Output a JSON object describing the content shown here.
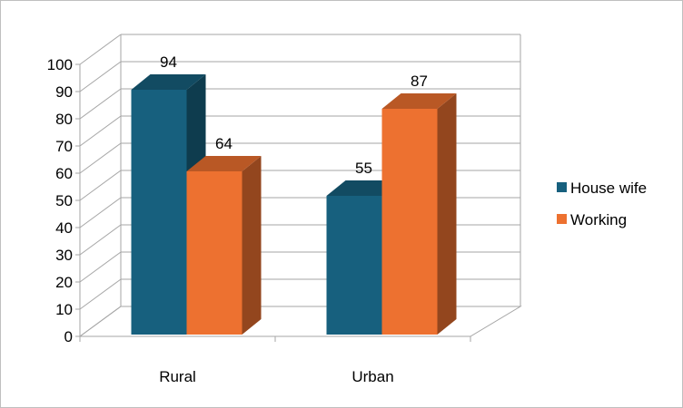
{
  "chart_data": {
    "type": "bar",
    "style": "3d-clustered-column",
    "categories": [
      "Rural",
      "Urban"
    ],
    "series": [
      {
        "name": "House wife",
        "values": [
          94,
          55
        ],
        "color": "#17607e"
      },
      {
        "name": "Working",
        "values": [
          64,
          87
        ],
        "color": "#ed7130"
      }
    ],
    "ylim": [
      0,
      100
    ],
    "yticks": [
      0,
      10,
      20,
      30,
      40,
      50,
      60,
      70,
      80,
      90,
      100
    ],
    "grid": true,
    "legend_position": "right",
    "data_labels": true
  }
}
